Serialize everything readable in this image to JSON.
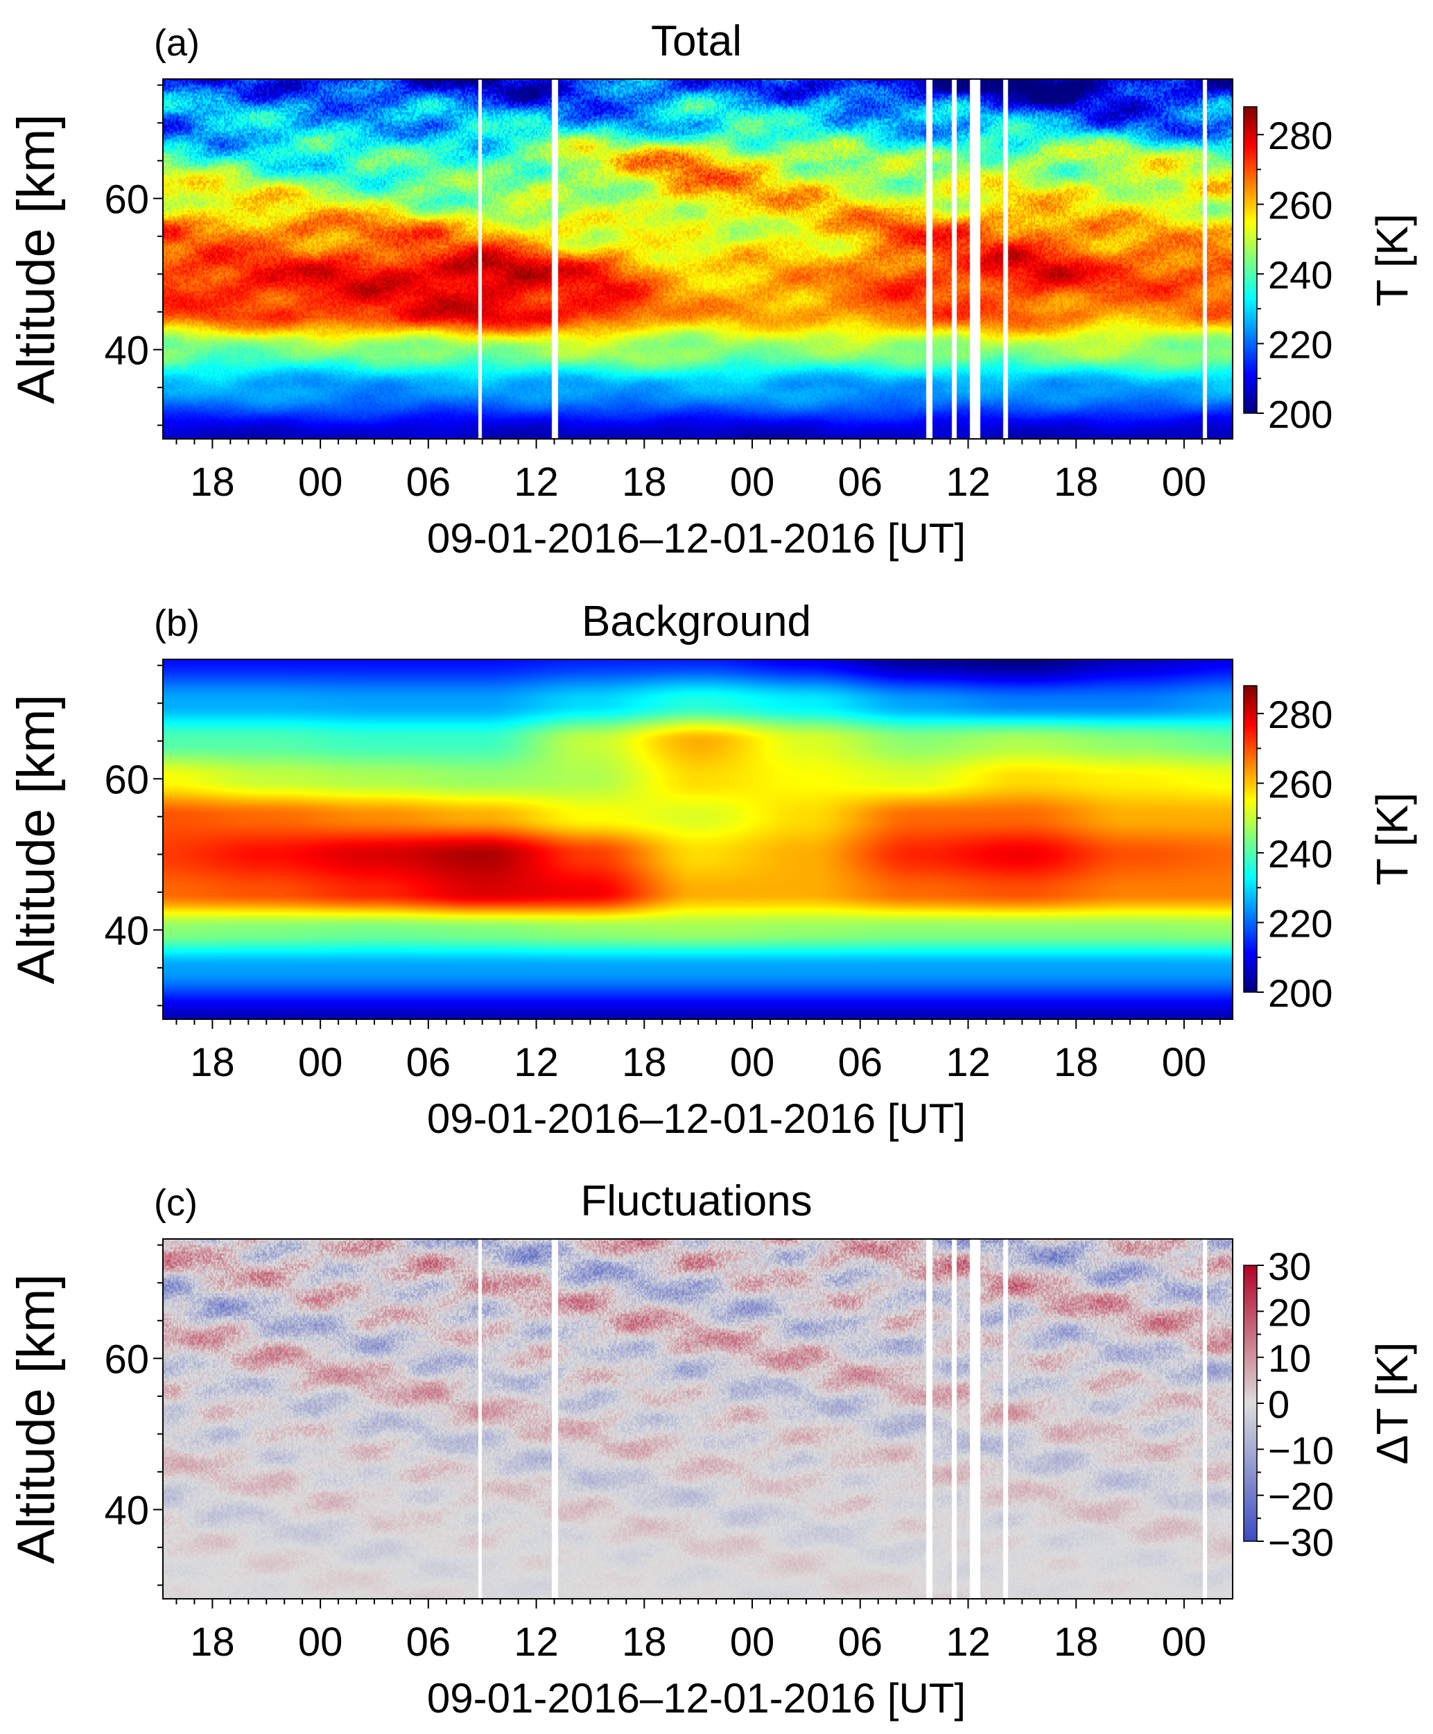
{
  "chart_data": [
    {
      "type": "heatmap",
      "panel_label": "(a)",
      "title": "Total",
      "xlabel": "09-01-2016–12-01-2016 [UT]",
      "ylabel": "Altitude [km]",
      "colorbar_label": "T [K]",
      "colormap": "jet",
      "clim": [
        200,
        288
      ],
      "colorbar_ticks": [
        "200",
        "220",
        "240",
        "260",
        "280"
      ],
      "field": "background + fluctuations",
      "data_gaps": true
    },
    {
      "type": "heatmap",
      "panel_label": "(b)",
      "title": "Background",
      "xlabel": "09-01-2016–12-01-2016 [UT]",
      "ylabel": "Altitude [km]",
      "colorbar_label": "T [K]",
      "colormap": "jet",
      "clim": [
        200,
        288
      ],
      "colorbar_ticks": [
        "200",
        "220",
        "240",
        "260",
        "280"
      ],
      "field": "background",
      "data_gaps": false
    },
    {
      "type": "heatmap",
      "panel_label": "(c)",
      "title": "Fluctuations",
      "xlabel": "09-01-2016–12-01-2016 [UT]",
      "ylabel": "Altitude [km]",
      "colorbar_label": "ΔT [K]",
      "colormap": "coolwarm",
      "clim": [
        -30,
        30
      ],
      "colorbar_ticks": [
        "−30",
        "−20",
        "−10",
        "0",
        "10",
        "20",
        "30"
      ],
      "field": "fluctuations",
      "data_gaps": true
    }
  ],
  "shared": {
    "xlim": [
      "09-01-2016 15:15",
      "12-01-2016 02:42"
    ],
    "ylim": [
      28.2,
      75.8
    ],
    "x_tick_labels": [
      "18",
      "00",
      "06",
      "12",
      "18",
      "00",
      "06",
      "12",
      "18",
      "00"
    ],
    "x_ticks": [
      "09-01-2016 18:00",
      "10-01-2016 00:00",
      "10-01-2016 06:00",
      "10-01-2016 12:00",
      "10-01-2016 18:00",
      "11-01-2016 00:00",
      "11-01-2016 06:00",
      "11-01-2016 12:00",
      "11-01-2016 18:00",
      "12-01-2016 00:00"
    ],
    "y_ticks": [
      40,
      60
    ],
    "y_tick_labels": [
      "40",
      "60"
    ],
    "data_gaps": [
      [
        "10-01-2016 08:45",
        "10-01-2016 08:58"
      ],
      [
        "10-01-2016 12:50",
        "10-01-2016 13:12"
      ],
      [
        "11-01-2016 09:40",
        "11-01-2016 10:00"
      ],
      [
        "11-01-2016 11:05",
        "11-01-2016 11:20"
      ],
      [
        "11-01-2016 12:05",
        "11-01-2016 12:40"
      ],
      [
        "11-01-2016 13:55",
        "11-01-2016 14:12"
      ],
      [
        "12-01-2016 01:02",
        "12-01-2016 01:15"
      ]
    ],
    "background_grid": {
      "times": [
        "09-01-2016 15:00",
        "09-01-2016 21:00",
        "10-01-2016 03:00",
        "10-01-2016 09:00",
        "10-01-2016 15:00",
        "10-01-2016 21:00",
        "11-01-2016 03:00",
        "11-01-2016 09:00",
        "11-01-2016 15:00",
        "11-01-2016 21:00",
        "12-01-2016 03:00"
      ],
      "altitudes_km": [
        28,
        35,
        40,
        45,
        50,
        55,
        60,
        65,
        70,
        76
      ],
      "temperature_K": [
        [
          205,
          205,
          205,
          205,
          205,
          205,
          205,
          205,
          205,
          205,
          205
        ],
        [
          225,
          225,
          225,
          225,
          225,
          225,
          225,
          225,
          225,
          225,
          225
        ],
        [
          245,
          244,
          243,
          244,
          246,
          247,
          246,
          245,
          245,
          245,
          246
        ],
        [
          268,
          270,
          274,
          280,
          278,
          262,
          262,
          268,
          270,
          266,
          266
        ],
        [
          272,
          276,
          280,
          284,
          272,
          258,
          262,
          274,
          278,
          270,
          268
        ],
        [
          270,
          268,
          265,
          262,
          255,
          252,
          258,
          268,
          268,
          262,
          262
        ],
        [
          255,
          250,
          248,
          246,
          248,
          258,
          255,
          252,
          258,
          256,
          254
        ],
        [
          240,
          240,
          238,
          238,
          250,
          262,
          252,
          245,
          248,
          245,
          242
        ],
        [
          226,
          226,
          225,
          225,
          230,
          236,
          232,
          225,
          222,
          222,
          225
        ],
        [
          212,
          212,
          212,
          212,
          214,
          214,
          210,
          202,
          200,
          206,
          210
        ]
      ]
    }
  }
}
